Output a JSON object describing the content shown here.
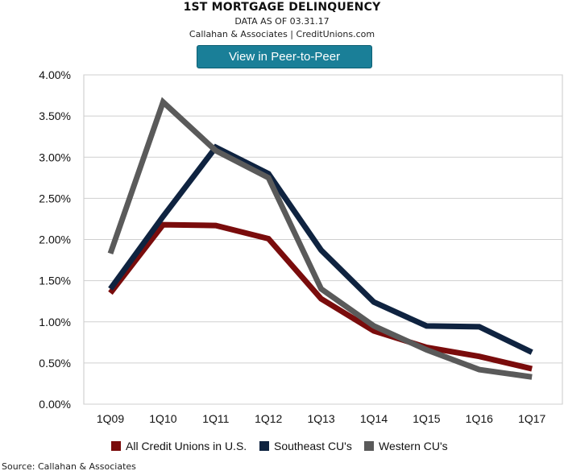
{
  "header": {
    "title": "1ST MORTGAGE DELINQUENCY",
    "subtitle": "DATA AS OF 03.31.17",
    "credit": "Callahan & Associates | CreditUnions.com"
  },
  "button": {
    "label": "View in Peer-to-Peer"
  },
  "footer": {
    "source": "Source: Callahan & Associates"
  },
  "chart_data": {
    "type": "line",
    "categories": [
      "1Q09",
      "1Q10",
      "1Q11",
      "1Q12",
      "1Q13",
      "1Q14",
      "1Q15",
      "1Q16",
      "1Q17"
    ],
    "series": [
      {
        "name": "All Credit Unions in U.S.",
        "color": "#7a0c0c",
        "values": [
          1.35,
          2.18,
          2.17,
          2.01,
          1.28,
          0.89,
          0.69,
          0.58,
          0.43
        ]
      },
      {
        "name": "Southeast CU's",
        "color": "#0f2340",
        "values": [
          1.4,
          2.28,
          3.12,
          2.8,
          1.87,
          1.24,
          0.95,
          0.94,
          0.63
        ]
      },
      {
        "name": "Western CU's",
        "color": "#5a5a5a",
        "values": [
          1.83,
          3.67,
          3.08,
          2.75,
          1.4,
          0.95,
          0.66,
          0.42,
          0.33
        ]
      }
    ],
    "ylim": [
      0,
      4
    ],
    "yticks": [
      "0.00%",
      "0.50%",
      "1.00%",
      "1.50%",
      "2.00%",
      "2.50%",
      "3.00%",
      "3.50%",
      "4.00%"
    ],
    "grid": "horizontal",
    "legend_position": "bottom"
  }
}
